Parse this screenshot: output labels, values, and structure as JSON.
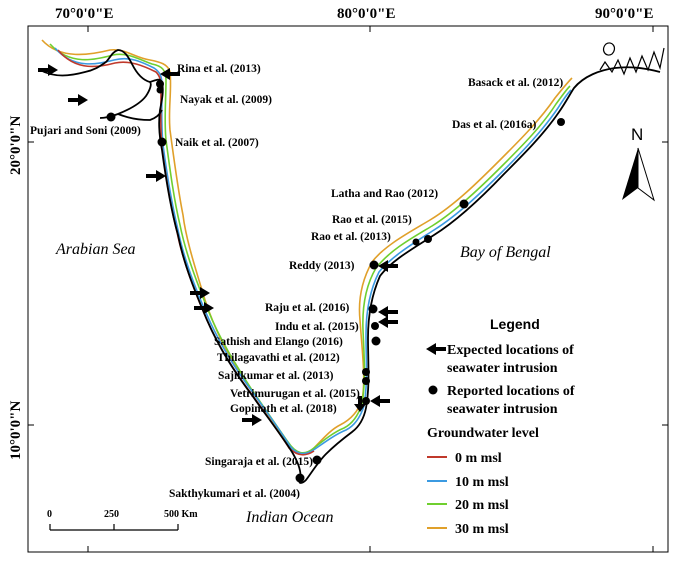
{
  "grid_labels": {
    "lon_70": "70°0'0\"E",
    "lon_80": "80°0'0\"E",
    "lon_90": "90°0'0\"E",
    "lat_20": "20°0'0\"N",
    "lat_10": "10°0'0\"N"
  },
  "seas": {
    "arabian": "Arabian Sea",
    "bengal": "Bay of Bengal",
    "indian": "Indian Ocean"
  },
  "references": [
    "Rina et al. (2013)",
    "Nayak et al. (2009)",
    "Pujari and Soni (2009)",
    "Naik et al. (2007)",
    "Basack et al. (2012)",
    "Das et al. (2016a)",
    "Latha and Rao (2012)",
    "Rao et al. (2015)",
    "Rao et al. (2013)",
    "Reddy (2013)",
    "Raju et al. (2016)",
    "Indu et al. (2015)",
    "Sathish and Elango (2016)",
    "Thilagavathi et al. (2012)",
    "Sajilkumar et al. (2013)",
    "Vetrimurugan et al. (2015)",
    "Gopinath et al. (2018)",
    "Singaraja et al. (2015)",
    "Sakthykumari et al. (2004)"
  ],
  "legend": {
    "title": "Legend",
    "expected_line1": "Expected locations of",
    "expected_line2": "seawater intrusion",
    "reported_line1": "Reported locations of",
    "reported_line2": "seawater intrusion",
    "gw_title": "Groundwater level",
    "levels": [
      {
        "label": "0 m msl",
        "color": "#c0392b"
      },
      {
        "label": "10 m msl",
        "color": "#3b9ae1"
      },
      {
        "label": "20 m msl",
        "color": "#6fcf2f"
      },
      {
        "label": "30 m msl",
        "color": "#e0a02a"
      }
    ]
  },
  "scale_bar": {
    "labels": [
      "0",
      "250",
      "500 Km"
    ]
  },
  "north_arrow": {
    "label": "N"
  },
  "colors": {
    "coastline": "#000000",
    "contour_0": "#c0392b",
    "contour_10": "#3b9ae1",
    "contour_20": "#6fcf2f",
    "contour_30": "#e0a02a"
  }
}
